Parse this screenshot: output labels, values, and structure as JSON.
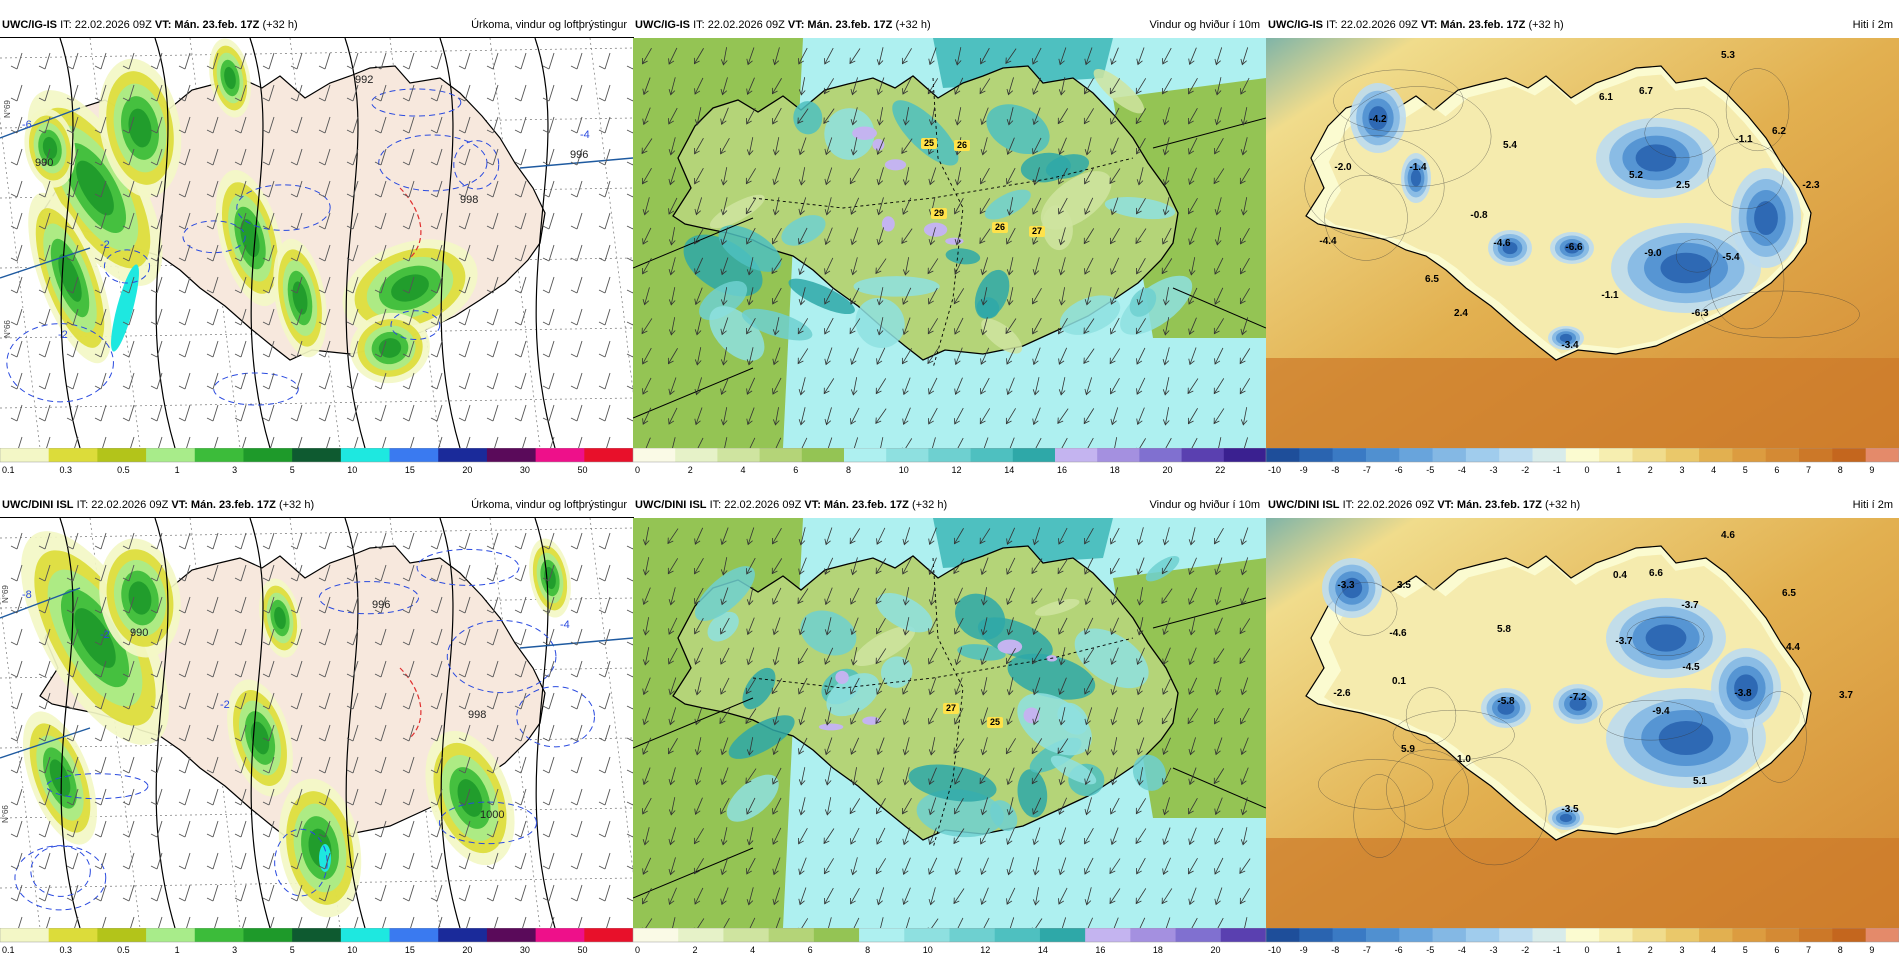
{
  "header": {
    "it_label": "IT: 22.02.2026 09Z",
    "vt_label": "VT: Mán. 23.feb. 17Z",
    "lead": "(+32 h)"
  },
  "rows": [
    {
      "model": "UWC/IG-IS",
      "panels": [
        {
          "kind": "precip",
          "title": "Úrkoma, vindur og loftþrýstingur",
          "contour_labels": [
            "-6",
            "-2",
            "-2",
            "-4",
            "990",
            "992",
            "996",
            "998",
            "N°69",
            "N°66"
          ],
          "colorbar": {
            "colors": [
              "#f3f7c6",
              "#dcdc3a",
              "#b3c41a",
              "#a8ec8a",
              "#3cbc3a",
              "#1e9a2a",
              "#0e5a30",
              "#1ee8e0",
              "#3a7af0",
              "#1a2a9a",
              "#5a0a5a",
              "#ee108a",
              "#e8102a"
            ],
            "ticks": [
              "0.1",
              "0.3",
              "0.5",
              "1",
              "3",
              "5",
              "10",
              "15",
              "20",
              "30",
              "50"
            ]
          }
        },
        {
          "kind": "wind",
          "title": "Vindur og hviður í 10m",
          "gust_labels": [
            "25",
            "26",
            "29",
            "26",
            "27"
          ],
          "colorbar": {
            "colors": [
              "#fafae6",
              "#e6f2c8",
              "#cfe4a0",
              "#b4d478",
              "#94c454",
              "#aef0f0",
              "#8ee0e0",
              "#6ed0d0",
              "#4ec0c0",
              "#2ea8a8",
              "#c4b4f0",
              "#a490e0",
              "#8070d0",
              "#5a40b0",
              "#3a2090"
            ],
            "ticks": [
              "0",
              "2",
              "4",
              "6",
              "8",
              "10",
              "12",
              "14",
              "16",
              "18",
              "20",
              "22"
            ]
          }
        },
        {
          "kind": "temp",
          "title": "Hiti í 2m",
          "temp_labels": [
            "5.3",
            "6.1",
            "6.7",
            "-4.2",
            "-2.0",
            "-1.4",
            "5.4",
            "-1.1",
            "6.2",
            "5.2",
            "2.5",
            "-2.3",
            "-0.8",
            "-4.4",
            "-4.6",
            "-6.6",
            "-9.0",
            "-5.4",
            "6.5",
            "-1.1",
            "-6.3",
            "2.4",
            "-3.4"
          ],
          "colorbar": {
            "colors": [
              "#1e4e9a",
              "#2a64b0",
              "#3a7ac4",
              "#5090d0",
              "#68a4dc",
              "#84b8e4",
              "#a0cced",
              "#bcdcf0",
              "#d8ecea",
              "#fbfbd0",
              "#f6eeb0",
              "#f0dc8c",
              "#eac86a",
              "#e2b050",
              "#dc9c40",
              "#d48a34",
              "#cc7828",
              "#c4661e",
              "#e48a6a"
            ],
            "ticks": [
              "-10",
              "-9",
              "-8",
              "-7",
              "-6",
              "-5",
              "-4",
              "-3",
              "-2",
              "-1",
              "0",
              "1",
              "2",
              "3",
              "4",
              "5",
              "6",
              "7",
              "8",
              "9"
            ]
          }
        }
      ]
    },
    {
      "model": "UWC/DINI ISL",
      "panels": [
        {
          "kind": "precip",
          "title": "Úrkoma, vindur og loftþrýstingur",
          "contour_labels": [
            "-8",
            "-2",
            "-4",
            "-2",
            "990",
            "996",
            "998",
            "1000",
            "N°69",
            "N°66"
          ],
          "colorbar": {
            "colors": [
              "#f3f7c6",
              "#dcdc3a",
              "#b3c41a",
              "#a8ec8a",
              "#3cbc3a",
              "#1e9a2a",
              "#0e5a30",
              "#1ee8e0",
              "#3a7af0",
              "#1a2a9a",
              "#5a0a5a",
              "#ee108a",
              "#e8102a"
            ],
            "ticks": [
              "0.1",
              "0.3",
              "0.5",
              "1",
              "3",
              "5",
              "10",
              "15",
              "20",
              "30",
              "50"
            ]
          }
        },
        {
          "kind": "wind",
          "title": "Vindur og hviður í 10m",
          "gust_labels": [
            "27",
            "25"
          ],
          "colorbar": {
            "colors": [
              "#fafae6",
              "#e6f2c8",
              "#cfe4a0",
              "#b4d478",
              "#94c454",
              "#aef0f0",
              "#8ee0e0",
              "#6ed0d0",
              "#4ec0c0",
              "#2ea8a8",
              "#c4b4f0",
              "#a490e0",
              "#8070d0",
              "#5a40b0"
            ],
            "ticks": [
              "0",
              "2",
              "4",
              "6",
              "8",
              "10",
              "12",
              "14",
              "16",
              "18",
              "20"
            ]
          }
        },
        {
          "kind": "temp",
          "title": "Hiti í 2m",
          "temp_labels": [
            "4.6",
            "0.4",
            "6.6",
            "-3.3",
            "3.5",
            "6.5",
            "-3.7",
            "-4.6",
            "5.8",
            "-3.7",
            "4.4",
            "-4.5",
            "0.1",
            "-2.6",
            "-5.8",
            "-7.2",
            "-9.4",
            "-3.8",
            "3.7",
            "5.9",
            "1.0",
            "5.1",
            "-3.5"
          ],
          "colorbar": {
            "colors": [
              "#1e4e9a",
              "#2a64b0",
              "#3a7ac4",
              "#5090d0",
              "#68a4dc",
              "#84b8e4",
              "#a0cced",
              "#bcdcf0",
              "#d8ecea",
              "#fbfbd0",
              "#f6eeb0",
              "#f0dc8c",
              "#eac86a",
              "#e2b050",
              "#dc9c40",
              "#d48a34",
              "#cc7828",
              "#c4661e",
              "#e48a6a"
            ],
            "ticks": [
              "-10",
              "-9",
              "-8",
              "-7",
              "-6",
              "-5",
              "-4",
              "-3",
              "-2",
              "-1",
              "0",
              "1",
              "2",
              "3",
              "4",
              "5",
              "6",
              "7",
              "8",
              "9"
            ]
          }
        }
      ]
    }
  ]
}
